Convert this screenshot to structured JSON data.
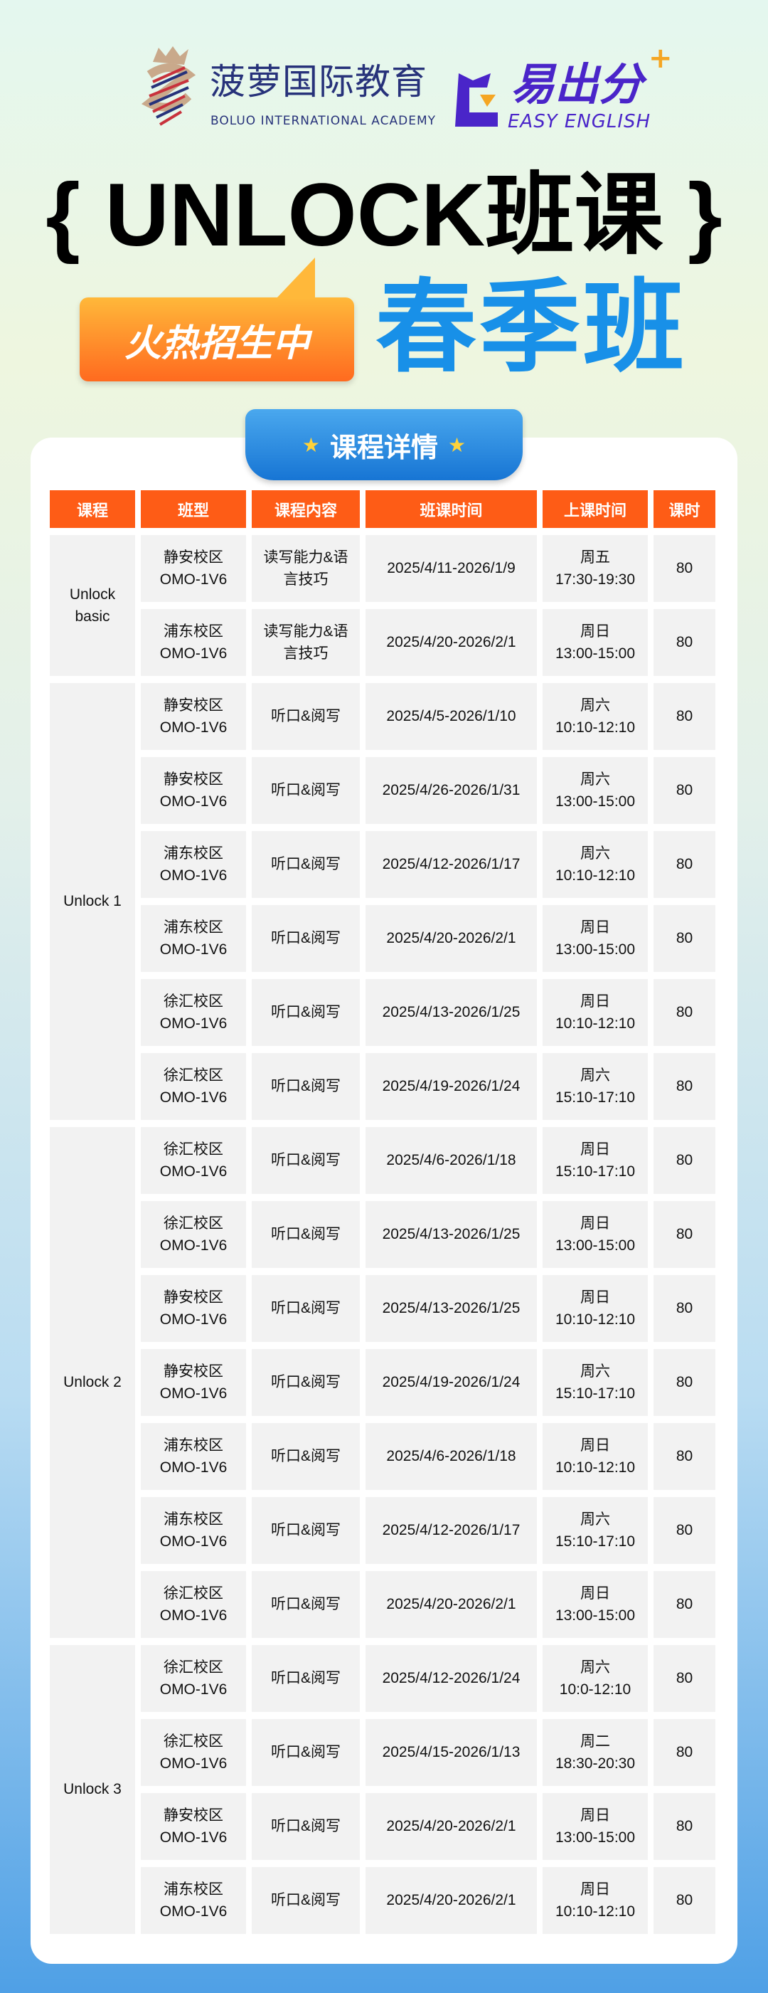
{
  "branding": {
    "boluo_cn": "菠萝国际教育",
    "boluo_en": "BOLUO INTERNATIONAL ACADEMY",
    "easy_cn": "易出分",
    "easy_en": "EASY ENGLISH"
  },
  "headline": "{ UNLOCK班课 }",
  "badge": "火热招生中",
  "season": "春季班",
  "section_title": "课程详情",
  "colors": {
    "header_orange": "#fe5c16",
    "accent_blue": "#1890e8",
    "brand_purple": "#4a25c9"
  },
  "table": {
    "headers": [
      "课程",
      "班型",
      "课程内容",
      "班课时间",
      "上课时间",
      "课时"
    ],
    "groups": [
      {
        "course": "Unlock\nbasic",
        "rows": [
          [
            "静安校区\nOMO-1V6",
            "读写能力&语\n言技巧",
            "2025/4/11-2026/1/9",
            "周五\n17:30-19:30",
            "80"
          ],
          [
            "浦东校区\nOMO-1V6",
            "读写能力&语\n言技巧",
            "2025/4/20-2026/2/1",
            "周日\n13:00-15:00",
            "80"
          ]
        ]
      },
      {
        "course": "Unlock 1",
        "rows": [
          [
            "静安校区\nOMO-1V6",
            "听口&阅写",
            "2025/4/5-2026/1/10",
            "周六\n10:10-12:10",
            "80"
          ],
          [
            "静安校区\nOMO-1V6",
            "听口&阅写",
            "2025/4/26-2026/1/31",
            "周六\n13:00-15:00",
            "80"
          ],
          [
            "浦东校区\nOMO-1V6",
            "听口&阅写",
            "2025/4/12-2026/1/17",
            "周六\n10:10-12:10",
            "80"
          ],
          [
            "浦东校区\nOMO-1V6",
            "听口&阅写",
            "2025/4/20-2026/2/1",
            "周日\n13:00-15:00",
            "80"
          ],
          [
            "徐汇校区\nOMO-1V6",
            "听口&阅写",
            "2025/4/13-2026/1/25",
            "周日\n10:10-12:10",
            "80"
          ],
          [
            "徐汇校区\nOMO-1V6",
            "听口&阅写",
            "2025/4/19-2026/1/24",
            "周六\n15:10-17:10",
            "80"
          ]
        ]
      },
      {
        "course": "Unlock 2",
        "rows": [
          [
            "徐汇校区\nOMO-1V6",
            "听口&阅写",
            "2025/4/6-2026/1/18",
            "周日\n15:10-17:10",
            "80"
          ],
          [
            "徐汇校区\nOMO-1V6",
            "听口&阅写",
            "2025/4/13-2026/1/25",
            "周日\n13:00-15:00",
            "80"
          ],
          [
            "静安校区\nOMO-1V6",
            "听口&阅写",
            "2025/4/13-2026/1/25",
            "周日\n10:10-12:10",
            "80"
          ],
          [
            "静安校区\nOMO-1V6",
            "听口&阅写",
            "2025/4/19-2026/1/24",
            "周六\n15:10-17:10",
            "80"
          ],
          [
            "浦东校区\nOMO-1V6",
            "听口&阅写",
            "2025/4/6-2026/1/18",
            "周日\n10:10-12:10",
            "80"
          ],
          [
            "浦东校区\nOMO-1V6",
            "听口&阅写",
            "2025/4/12-2026/1/17",
            "周六\n15:10-17:10",
            "80"
          ],
          [
            "徐汇校区\nOMO-1V6",
            "听口&阅写",
            "2025/4/20-2026/2/1",
            "周日\n13:00-15:00",
            "80"
          ]
        ]
      },
      {
        "course": "Unlock 3",
        "rows": [
          [
            "徐汇校区\nOMO-1V6",
            "听口&阅写",
            "2025/4/12-2026/1/24",
            "周六\n10:0-12:10",
            "80"
          ],
          [
            "徐汇校区\nOMO-1V6",
            "听口&阅写",
            "2025/4/15-2026/1/13",
            "周二\n18:30-20:30",
            "80"
          ],
          [
            "静安校区\nOMO-1V6",
            "听口&阅写",
            "2025/4/20-2026/2/1",
            "周日\n13:00-15:00",
            "80"
          ],
          [
            "浦东校区\nOMO-1V6",
            "听口&阅写",
            "2025/4/20-2026/2/1",
            "周日\n10:10-12:10",
            "80"
          ]
        ]
      }
    ]
  }
}
